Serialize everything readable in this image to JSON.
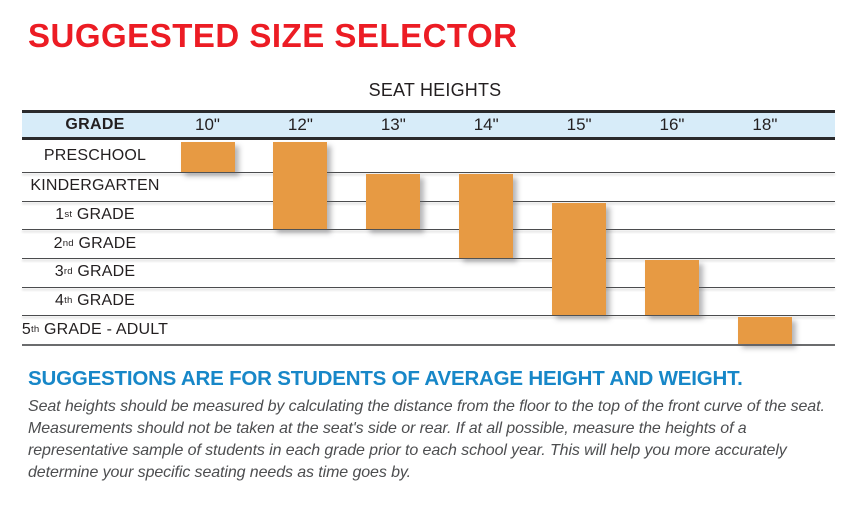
{
  "title": "SUGGESTED SIZE SELECTOR",
  "colors": {
    "title_red": "#EC1C24",
    "heading_blue": "#1787C8",
    "bar_orange": "#E79A43",
    "band_blue": "#D7ECF9"
  },
  "chart_data": {
    "type": "table",
    "title": "SEAT HEIGHTS",
    "row_header": "GRADE",
    "columns": [
      "10\"",
      "12\"",
      "13\"",
      "14\"",
      "15\"",
      "16\"",
      "18\""
    ],
    "rows": [
      {
        "label": "PRESCHOOL"
      },
      {
        "label": "KINDERGARTEN"
      },
      {
        "label": "1st GRADE",
        "base": "1",
        "ordinal": "st",
        "rest": "GRADE"
      },
      {
        "label": "2nd GRADE",
        "base": "2",
        "ordinal": "nd",
        "rest": "GRADE"
      },
      {
        "label": "3rd GRADE",
        "base": "3",
        "ordinal": "rd",
        "rest": "GRADE"
      },
      {
        "label": "4th GRADE",
        "base": "4",
        "ordinal": "th",
        "rest": "GRADE"
      },
      {
        "label": "5th GRADE - ADULT",
        "base": "5",
        "ordinal": "th",
        "rest": "GRADE - ADULT"
      }
    ],
    "bars": [
      {
        "seat_height": "10\"",
        "from_grade": "PRESCHOOL",
        "to_grade": "PRESCHOOL"
      },
      {
        "seat_height": "12\"",
        "from_grade": "PRESCHOOL",
        "to_grade": "1st GRADE"
      },
      {
        "seat_height": "13\"",
        "from_grade": "KINDERGARTEN",
        "to_grade": "1st GRADE"
      },
      {
        "seat_height": "14\"",
        "from_grade": "KINDERGARTEN",
        "to_grade": "2nd GRADE"
      },
      {
        "seat_height": "15\"",
        "from_grade": "1st GRADE",
        "to_grade": "4th GRADE"
      },
      {
        "seat_height": "16\"",
        "from_grade": "3rd GRADE",
        "to_grade": "4th GRADE"
      },
      {
        "seat_height": "18\"",
        "from_grade": "5th GRADE - ADULT",
        "to_grade": "5th GRADE - ADULT"
      }
    ]
  },
  "footer": {
    "heading": "SUGGESTIONS ARE FOR STUDENTS OF AVERAGE HEIGHT AND WEIGHT.",
    "body": "Seat heights should be measured by calculating the distance from the floor to the top of the front curve of the seat.  Measurements should not be taken at the seat's side or rear.  If at all possible, measure the heights of a representative sample of students in each grade prior to each school year.  This will help you more accurately determine your specific seating needs as time goes by."
  }
}
